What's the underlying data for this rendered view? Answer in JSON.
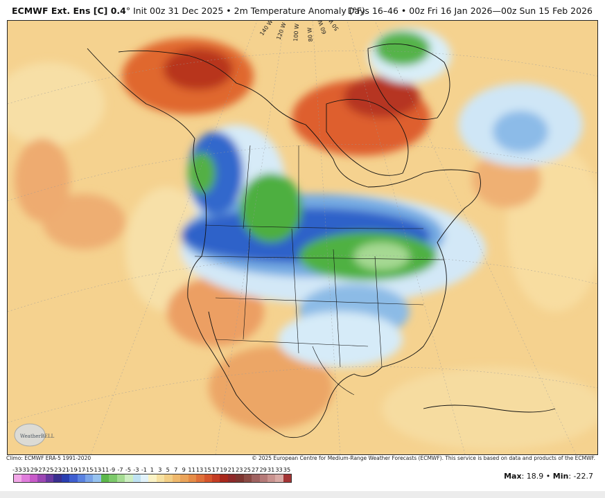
{
  "header": {
    "title_bold": "ECMWF Ext. Ens [C] 0.4",
    "title_rest": "° Init 00z 31 Dec 2025 • 2m Temperature Anomaly (°F)",
    "valid_range": "Days 16–46 • 00z Fri 16 Jan 2026—00z Sun 15 Feb 2026"
  },
  "map": {
    "projection_labels": [
      "140 W",
      "120 W",
      "100 W",
      "80 W",
      "60 W",
      "50 W"
    ],
    "colors": {
      "ocean_warm": "#f6d18e",
      "warm_light": "#f3dc9c",
      "warm_orange": "#eba466",
      "hot_red": "#d8542a",
      "hot_dark": "#a5281c",
      "cool_light": "#d9ecf7",
      "cool_blue": "#6fa6e0",
      "cold_blue": "#2d62c8",
      "cold_green": "#4fb141",
      "cold_green_light": "#9fd58c"
    },
    "logo": {
      "name": "WeatherBELL",
      "icon": "weatherbell-globe-icon"
    }
  },
  "footer": {
    "climo": "Climo: ECMWF ERA-5 1991-2020",
    "copyright": "© 2025 European Centre for Medium-Range Weather Forecasts (ECMWF). This service is based on data and products of the ECMWF."
  },
  "colorbar": {
    "labels": [
      "-33",
      "-31",
      "-29",
      "-27",
      "-25",
      "-23",
      "-21",
      "-19",
      "-17",
      "-15",
      "-13",
      "-11",
      "-9",
      "-7",
      "-5",
      "-3",
      "-1",
      "1",
      "3",
      "5",
      "7",
      "9",
      "11",
      "13",
      "15",
      "17",
      "19",
      "21",
      "23",
      "25",
      "27",
      "29",
      "31",
      "33",
      "35"
    ],
    "colors": [
      "#f2a8e8",
      "#e07ddc",
      "#c85bc9",
      "#9c48b4",
      "#6a3aa0",
      "#3a2f8f",
      "#2a3fb0",
      "#3f5fd0",
      "#5a82e0",
      "#7aa4e8",
      "#96c2ef",
      "#5db74b",
      "#7cc96a",
      "#a4db92",
      "#cdeec2",
      "#bfe2f2",
      "#e2f2fa",
      "#fbf3c6",
      "#f7e2a3",
      "#f3cf86",
      "#efb86c",
      "#eba45a",
      "#e68c47",
      "#df7039",
      "#d5552c",
      "#c43d24",
      "#a8291c",
      "#8e2a2a",
      "#7d3530",
      "#8a4a44",
      "#9f6260",
      "#b57a78",
      "#c9938f",
      "#d9aaa5",
      "#a33434"
    ]
  },
  "stats": {
    "max_label": "Max",
    "max_value": ": 18.9",
    "sep": " • ",
    "min_label": "Min",
    "min_value": ": -22.7"
  }
}
